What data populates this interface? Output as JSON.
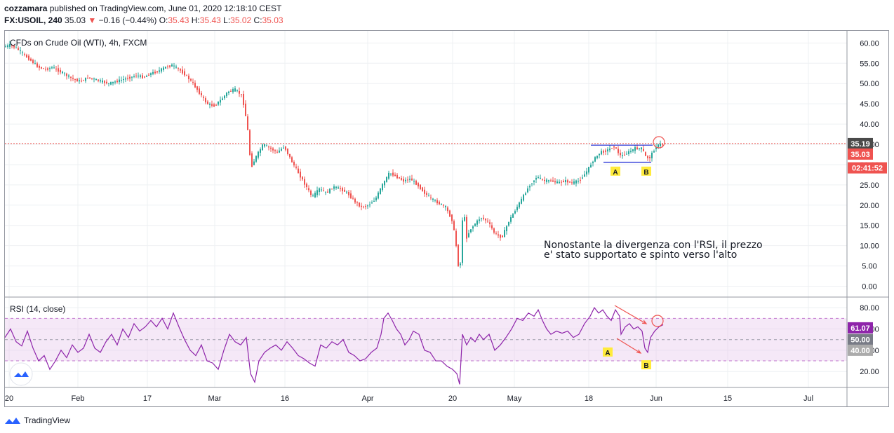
{
  "header": {
    "author": "cozzamara",
    "published_text": "published on TradingView.com, June 01, 2020 12:18:10 CEST",
    "symbol": "FX:USOIL, 240",
    "last": "35.03",
    "change_arrow": "▼",
    "change": "−0.16 (−0.44%)",
    "o_label": "O:",
    "o_value": "35.43",
    "h_label": "H:",
    "h_value": "35.43",
    "l_label": "L:",
    "l_value": "35.02",
    "c_label": "C:",
    "c_value": "35.03"
  },
  "chart_data": [
    {
      "type": "candlestick",
      "title": "CFDs on Crude Oil (WTI), 4h, FXCM",
      "ylim": [
        -2.5,
        63
      ],
      "yticks": [
        "60.00",
        "55.00",
        "50.00",
        "45.00",
        "40.00",
        "35.00",
        "30.00",
        "25.00",
        "20.00",
        "15.00",
        "10.00",
        "5.00",
        "0.00"
      ],
      "price_badges": [
        {
          "label": "35.19",
          "value": 35.19,
          "color": "#4a4a4a"
        },
        {
          "label": "35.03",
          "value": 32.6,
          "color": "#ef5350"
        },
        {
          "label": "02:41:52",
          "value": 29.2,
          "color": "#ef5350"
        }
      ],
      "horizontal_line": 35.19,
      "xticks": [
        "20",
        "Feb",
        "17",
        "Mar",
        "16",
        "Apr",
        "20",
        "May",
        "18",
        "Jun",
        "15",
        "Jul"
      ],
      "path_points": [
        [
          0,
          59
        ],
        [
          10,
          59.5
        ],
        [
          20,
          58.5
        ],
        [
          30,
          57
        ],
        [
          40,
          55.5
        ],
        [
          50,
          54
        ],
        [
          60,
          53.5
        ],
        [
          70,
          54
        ],
        [
          80,
          53
        ],
        [
          90,
          52
        ],
        [
          100,
          51
        ],
        [
          110,
          50.5
        ],
        [
          120,
          51.5
        ],
        [
          130,
          51
        ],
        [
          140,
          50.5
        ],
        [
          150,
          50
        ],
        [
          160,
          50.5
        ],
        [
          170,
          51
        ],
        [
          180,
          51.5
        ],
        [
          190,
          52
        ],
        [
          200,
          51.5
        ],
        [
          210,
          52.5
        ],
        [
          220,
          53
        ],
        [
          230,
          54
        ],
        [
          240,
          54.5
        ],
        [
          250,
          53.5
        ],
        [
          260,
          52
        ],
        [
          270,
          50
        ],
        [
          280,
          47.5
        ],
        [
          290,
          45
        ],
        [
          300,
          44.5
        ],
        [
          310,
          46
        ],
        [
          320,
          48
        ],
        [
          330,
          48.5
        ],
        [
          340,
          47
        ],
        [
          345,
          42
        ],
        [
          350,
          36
        ],
        [
          352,
          29
        ],
        [
          360,
          32
        ],
        [
          370,
          35
        ],
        [
          380,
          34
        ],
        [
          390,
          33
        ],
        [
          400,
          34.5
        ],
        [
          410,
          31
        ],
        [
          420,
          28
        ],
        [
          430,
          25
        ],
        [
          440,
          22
        ],
        [
          450,
          24
        ],
        [
          460,
          23
        ],
        [
          470,
          24.5
        ],
        [
          480,
          24
        ],
        [
          490,
          23
        ],
        [
          500,
          21
        ],
        [
          510,
          19.5
        ],
        [
          520,
          20
        ],
        [
          530,
          21.5
        ],
        [
          540,
          25
        ],
        [
          550,
          28
        ],
        [
          560,
          27
        ],
        [
          570,
          26
        ],
        [
          580,
          26.5
        ],
        [
          590,
          25
        ],
        [
          600,
          23
        ],
        [
          610,
          21.5
        ],
        [
          620,
          20.5
        ],
        [
          630,
          19.5
        ],
        [
          640,
          16
        ],
        [
          645,
          10
        ],
        [
          650,
          2
        ],
        [
          655,
          20
        ],
        [
          660,
          12
        ],
        [
          665,
          14
        ],
        [
          670,
          15
        ],
        [
          680,
          17
        ],
        [
          690,
          16
        ],
        [
          700,
          13
        ],
        [
          710,
          12
        ],
        [
          720,
          16
        ],
        [
          730,
          19
        ],
        [
          740,
          22
        ],
        [
          750,
          25
        ],
        [
          760,
          27
        ],
        [
          770,
          26
        ],
        [
          780,
          26
        ],
        [
          790,
          25.5
        ],
        [
          800,
          26
        ],
        [
          810,
          25.5
        ],
        [
          820,
          26
        ],
        [
          830,
          28
        ],
        [
          840,
          31
        ],
        [
          850,
          33
        ],
        [
          860,
          33.5
        ],
        [
          870,
          34.5
        ],
        [
          880,
          32
        ],
        [
          890,
          33
        ],
        [
          900,
          34
        ],
        [
          910,
          34
        ],
        [
          915,
          32
        ],
        [
          920,
          31.5
        ],
        [
          925,
          33
        ],
        [
          930,
          34.5
        ],
        [
          936,
          35
        ]
      ],
      "annotation": {
        "line1": "Nonostante la divergenza con l'RSI, il prezzo",
        "line2": "e' stato supportato e spinto verso l'alto"
      },
      "markers": [
        {
          "label": "A",
          "x": 877,
          "y": 28.3
        },
        {
          "label": "B",
          "x": 921,
          "y": 28.3
        }
      ],
      "levels": [
        {
          "x1": 842,
          "x2": 930,
          "value": 34.8,
          "color": "#1e2bd6"
        },
        {
          "x1": 860,
          "x2": 928,
          "value": 30.6,
          "color": "#1e2bd6"
        }
      ]
    },
    {
      "type": "line",
      "title": "RSI (14, close)",
      "ylim": [
        5,
        90
      ],
      "yticks": [
        "80.00",
        "60.00",
        "40.00",
        "20.00"
      ],
      "band": [
        30,
        70
      ],
      "midline": 50,
      "value_badges": [
        {
          "label": "61.07",
          "value": 61.07,
          "color": "#8e24aa"
        },
        {
          "label": "50.00",
          "value": 50,
          "color": "#787b86"
        },
        {
          "label": "40.00",
          "value": 40,
          "color": "#ababab"
        }
      ],
      "series_color": "#8e24aa",
      "path_points": [
        [
          0,
          52
        ],
        [
          8,
          60
        ],
        [
          16,
          48
        ],
        [
          24,
          44
        ],
        [
          32,
          58
        ],
        [
          40,
          42
        ],
        [
          48,
          30
        ],
        [
          56,
          35
        ],
        [
          64,
          22
        ],
        [
          72,
          30
        ],
        [
          80,
          40
        ],
        [
          88,
          33
        ],
        [
          96,
          45
        ],
        [
          104,
          38
        ],
        [
          112,
          42
        ],
        [
          120,
          55
        ],
        [
          128,
          42
        ],
        [
          136,
          38
        ],
        [
          144,
          48
        ],
        [
          152,
          55
        ],
        [
          160,
          45
        ],
        [
          168,
          60
        ],
        [
          176,
          52
        ],
        [
          184,
          65
        ],
        [
          192,
          58
        ],
        [
          200,
          62
        ],
        [
          208,
          68
        ],
        [
          216,
          62
        ],
        [
          224,
          70
        ],
        [
          232,
          60
        ],
        [
          240,
          75
        ],
        [
          248,
          62
        ],
        [
          256,
          50
        ],
        [
          264,
          40
        ],
        [
          272,
          35
        ],
        [
          280,
          45
        ],
        [
          288,
          30
        ],
        [
          296,
          28
        ],
        [
          304,
          22
        ],
        [
          312,
          40
        ],
        [
          320,
          55
        ],
        [
          328,
          48
        ],
        [
          336,
          45
        ],
        [
          344,
          52
        ],
        [
          350,
          18
        ],
        [
          356,
          10
        ],
        [
          362,
          30
        ],
        [
          370,
          38
        ],
        [
          378,
          42
        ],
        [
          386,
          45
        ],
        [
          394,
          40
        ],
        [
          402,
          48
        ],
        [
          410,
          42
        ],
        [
          418,
          35
        ],
        [
          426,
          32
        ],
        [
          434,
          28
        ],
        [
          442,
          25
        ],
        [
          450,
          45
        ],
        [
          458,
          42
        ],
        [
          466,
          48
        ],
        [
          474,
          45
        ],
        [
          482,
          50
        ],
        [
          490,
          38
        ],
        [
          498,
          35
        ],
        [
          506,
          30
        ],
        [
          514,
          32
        ],
        [
          522,
          38
        ],
        [
          530,
          42
        ],
        [
          536,
          55
        ],
        [
          540,
          70
        ],
        [
          546,
          75
        ],
        [
          552,
          68
        ],
        [
          558,
          60
        ],
        [
          564,
          55
        ],
        [
          570,
          45
        ],
        [
          576,
          50
        ],
        [
          582,
          58
        ],
        [
          590,
          55
        ],
        [
          598,
          40
        ],
        [
          606,
          38
        ],
        [
          614,
          30
        ],
        [
          622,
          30
        ],
        [
          630,
          25
        ],
        [
          638,
          22
        ],
        [
          644,
          18
        ],
        [
          648,
          8
        ],
        [
          652,
          55
        ],
        [
          658,
          45
        ],
        [
          664,
          52
        ],
        [
          670,
          48
        ],
        [
          676,
          55
        ],
        [
          682,
          50
        ],
        [
          690,
          55
        ],
        [
          698,
          40
        ],
        [
          706,
          45
        ],
        [
          714,
          52
        ],
        [
          722,
          60
        ],
        [
          730,
          70
        ],
        [
          738,
          68
        ],
        [
          746,
          75
        ],
        [
          754,
          72
        ],
        [
          760,
          78
        ],
        [
          766,
          68
        ],
        [
          772,
          60
        ],
        [
          778,
          55
        ],
        [
          786,
          58
        ],
        [
          794,
          56
        ],
        [
          802,
          58
        ],
        [
          810,
          52
        ],
        [
          818,
          55
        ],
        [
          826,
          65
        ],
        [
          834,
          72
        ],
        [
          840,
          80
        ],
        [
          846,
          75
        ],
        [
          852,
          78
        ],
        [
          858,
          72
        ],
        [
          864,
          68
        ],
        [
          870,
          78
        ],
        [
          876,
          72
        ],
        [
          878,
          55
        ],
        [
          884,
          62
        ],
        [
          890,
          65
        ],
        [
          896,
          60
        ],
        [
          902,
          62
        ],
        [
          908,
          58
        ],
        [
          912,
          42
        ],
        [
          916,
          38
        ],
        [
          920,
          52
        ],
        [
          926,
          58
        ],
        [
          932,
          62
        ],
        [
          938,
          64
        ]
      ],
      "markers": [
        {
          "label": "A",
          "x": 866,
          "y": 38
        },
        {
          "label": "B",
          "x": 921,
          "y": 26
        }
      ],
      "xticks": [
        "20",
        "Feb",
        "17",
        "Mar",
        "16",
        "Apr",
        "20",
        "May",
        "18",
        "Jun",
        "15",
        "Jul"
      ]
    }
  ],
  "footer": {
    "brand": "TradingView"
  }
}
